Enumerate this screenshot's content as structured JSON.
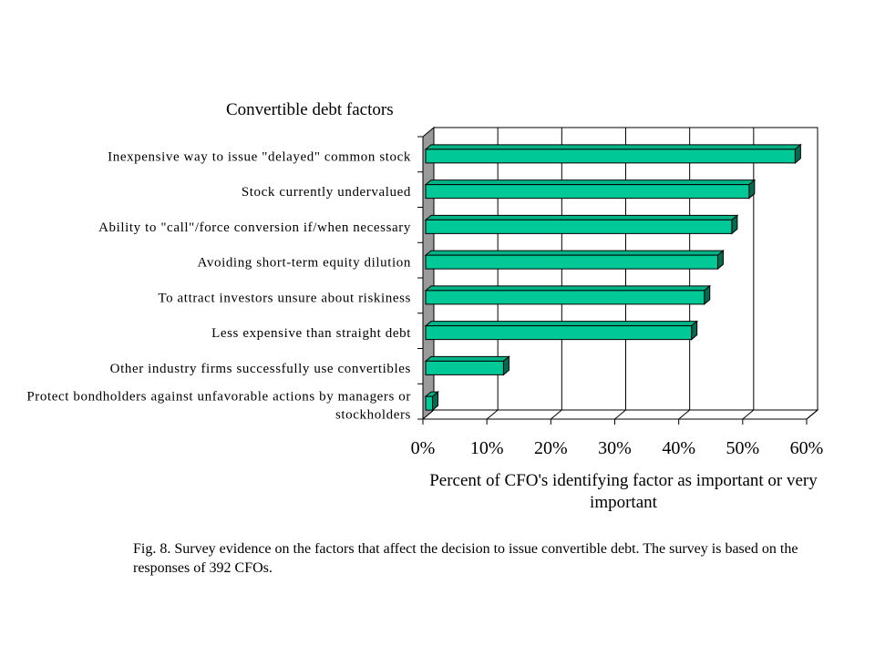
{
  "chart_data": {
    "type": "bar",
    "orientation": "horizontal",
    "title": "Convertible debt factors",
    "xlabel": "Percent of CFO's identifying factor as important or very important",
    "categories": [
      "Inexpensive way to issue \"delayed\" common stock",
      "Stock currently undervalued",
      "Ability to \"call\"/force conversion if/when necessary",
      "Avoiding short-term equity dilution",
      "To attract investors unsure about riskiness",
      "Less expensive than straight debt",
      "Other industry firms successfully use convertibles",
      "Protect bondholders against unfavorable actions by managers or stockholders"
    ],
    "values": [
      58.2,
      51.0,
      48.3,
      46.1,
      44.0,
      42.0,
      12.6,
      1.5
    ],
    "xlim": [
      0,
      60
    ],
    "xticks": [
      "0%",
      "10%",
      "20%",
      "30%",
      "40%",
      "50%",
      "60%"
    ],
    "grid": true,
    "bar_color": "#00c896"
  },
  "caption": "Fig. 8.  Survey evidence on the factors that affect the decision to issue convertible debt.  The survey is based on the responses of 392 CFOs."
}
